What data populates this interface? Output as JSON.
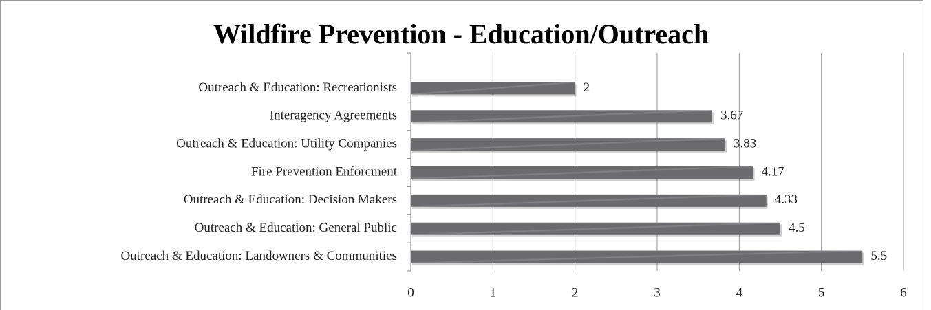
{
  "chart_data": {
    "type": "bar",
    "orientation": "horizontal",
    "title": "Wildfire Prevention - Education/Outreach",
    "categories": [
      "Outreach & Education: Recreationists",
      "Interagency Agreements",
      "Outreach & Education: Utility Companies",
      "Fire Prevention Enforcment",
      "Outreach & Education: Decision Makers",
      "Outreach & Education: General Public",
      "Outreach & Education: Landowners & Communities"
    ],
    "values": [
      2,
      3.67,
      3.83,
      4.17,
      4.33,
      4.5,
      5.5
    ],
    "color": "#6b6b6e",
    "xlim": [
      0,
      6
    ],
    "xticks": [
      0,
      1,
      2,
      3,
      4,
      5,
      6
    ],
    "grid": true
  }
}
